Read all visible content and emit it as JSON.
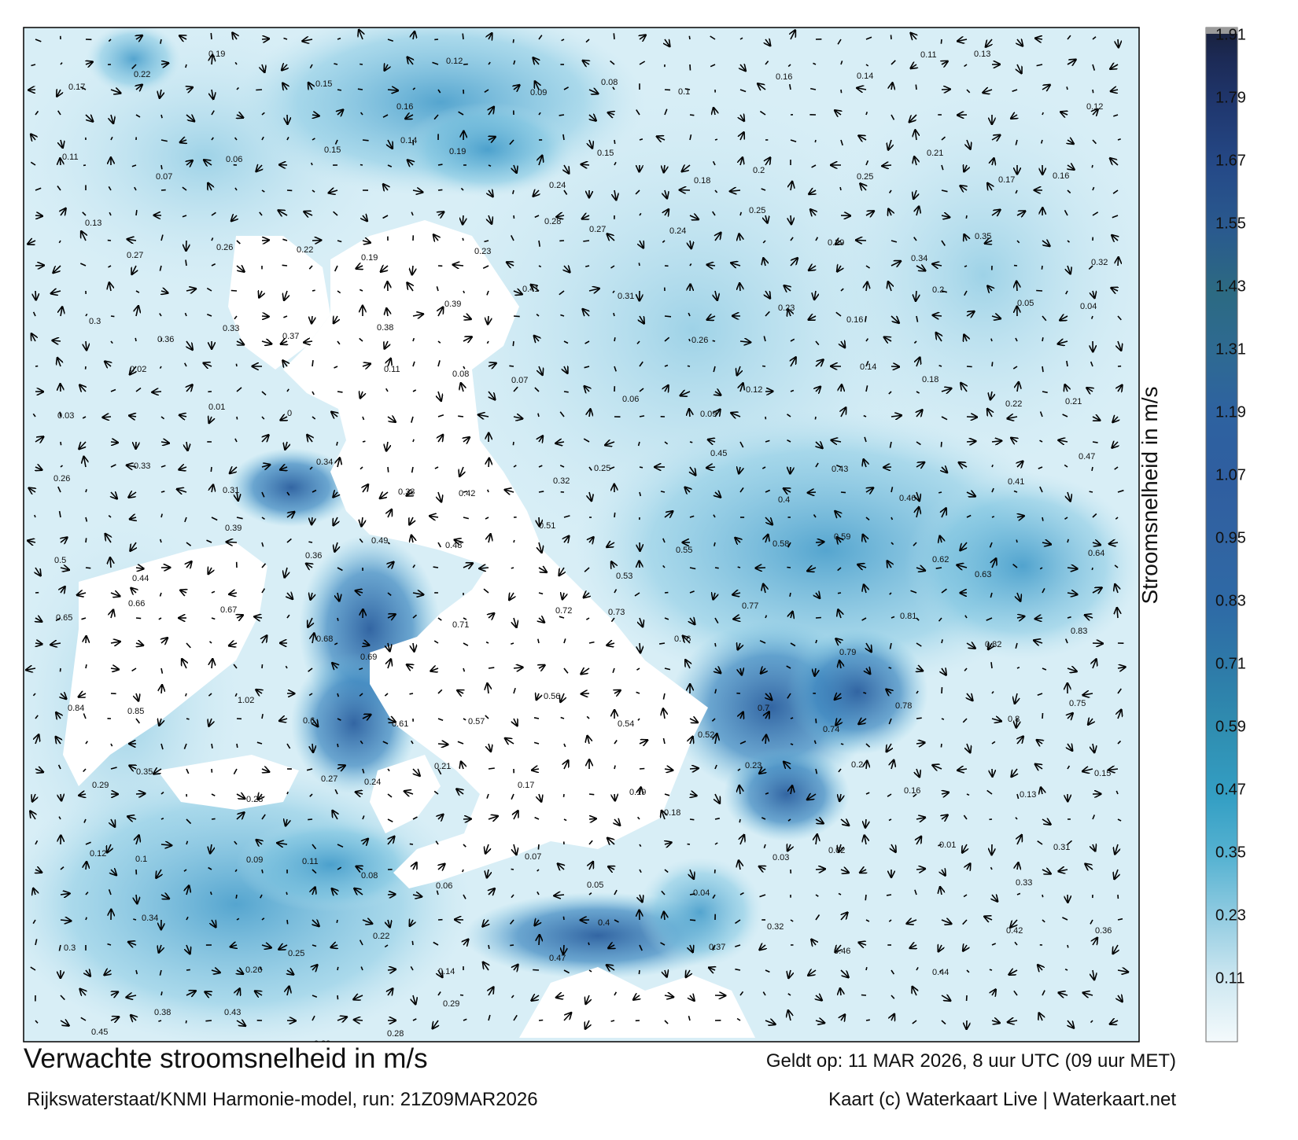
{
  "map": {
    "title": "Verwachte stroomsnelheid in m/s",
    "subtitle": "Rijkswaterstaat/KNMI Harmonie-model, run: 21Z09MAR2026",
    "validity": "Geldt op: 11 MAR 2026, 8 uur UTC (09 uur MET)",
    "credits": "Kaart (c) Waterkaart Live | Waterkaart.net",
    "variable": "stroomsnelheid",
    "unit": "m/s"
  },
  "colorbar": {
    "label": "Stroomsnelheid in m/s",
    "ticks": [
      "1.91",
      "1.79",
      "1.67",
      "1.55",
      "1.43",
      "1.31",
      "1.19",
      "1.07",
      "0.95",
      "0.83",
      "0.71",
      "0.59",
      "0.47",
      "0.35",
      "0.23",
      "0.11"
    ],
    "colors": [
      "#18203a",
      "#1c2a55",
      "#203870",
      "#254a88",
      "#2a5a8e",
      "#2c6a82",
      "#2e6a92",
      "#2e62a0",
      "#2f5ea0",
      "#3164a2",
      "#2e6aa6",
      "#2e7aa8",
      "#2f8db0",
      "#349fc4",
      "#58b3d2",
      "#95cde2",
      "#d7edf5"
    ]
  },
  "speed_labels": [
    {
      "v": "0.17"
    },
    {
      "v": "0.22"
    },
    {
      "v": "0.19"
    },
    {
      "v": "0.15"
    },
    {
      "v": "0.16"
    },
    {
      "v": "0.12"
    },
    {
      "v": "0.09"
    },
    {
      "v": "0.08"
    },
    {
      "v": "0.1"
    },
    {
      "v": "0.16"
    },
    {
      "v": "0.14"
    },
    {
      "v": "0.11"
    },
    {
      "v": "0.13"
    },
    {
      "v": "0.12"
    },
    {
      "v": "0.11"
    },
    {
      "v": "0.07"
    },
    {
      "v": "0.06"
    },
    {
      "v": "0.15"
    },
    {
      "v": "0.14"
    },
    {
      "v": "0.19"
    },
    {
      "v": "0.24"
    },
    {
      "v": "0.15"
    },
    {
      "v": "0.18"
    },
    {
      "v": "0.2"
    },
    {
      "v": "0.25"
    },
    {
      "v": "0.21"
    },
    {
      "v": "0.17"
    },
    {
      "v": "0.16"
    },
    {
      "v": "0.13"
    },
    {
      "v": "0.27"
    },
    {
      "v": "0.26"
    },
    {
      "v": "0.22"
    },
    {
      "v": "0.19"
    },
    {
      "v": "0.23"
    },
    {
      "v": "0.28"
    },
    {
      "v": "0.27"
    },
    {
      "v": "0.24"
    },
    {
      "v": "0.25"
    },
    {
      "v": "0.29"
    },
    {
      "v": "0.34"
    },
    {
      "v": "0.35"
    },
    {
      "v": "0.32"
    },
    {
      "v": "0.3"
    },
    {
      "v": "0.36"
    },
    {
      "v": "0.33"
    },
    {
      "v": "0.37"
    },
    {
      "v": "0.38"
    },
    {
      "v": "0.39"
    },
    {
      "v": "0.41"
    },
    {
      "v": "0.31"
    },
    {
      "v": "0.26"
    },
    {
      "v": "0.23"
    },
    {
      "v": "0.16"
    },
    {
      "v": "0.2"
    },
    {
      "v": "0.05"
    },
    {
      "v": "0.04"
    },
    {
      "v": "0.03"
    },
    {
      "v": "0.02"
    },
    {
      "v": "0.01"
    },
    {
      "v": "0"
    },
    {
      "v": "0.11"
    },
    {
      "v": "0.08"
    },
    {
      "v": "0.07"
    },
    {
      "v": "0.06"
    },
    {
      "v": "0.09"
    },
    {
      "v": "0.12"
    },
    {
      "v": "0.14"
    },
    {
      "v": "0.18"
    },
    {
      "v": "0.22"
    },
    {
      "v": "0.21"
    },
    {
      "v": "0.26"
    },
    {
      "v": "0.33"
    },
    {
      "v": "0.31"
    },
    {
      "v": "0.34"
    },
    {
      "v": "0.38"
    },
    {
      "v": "0.42"
    },
    {
      "v": "0.32"
    },
    {
      "v": "0.25"
    },
    {
      "v": "0.45"
    },
    {
      "v": "0.4"
    },
    {
      "v": "0.43"
    },
    {
      "v": "0.46"
    },
    {
      "v": "0.41"
    },
    {
      "v": "0.47"
    },
    {
      "v": "0.5"
    },
    {
      "v": "0.44"
    },
    {
      "v": "0.39"
    },
    {
      "v": "0.36"
    },
    {
      "v": "0.49"
    },
    {
      "v": "0.48"
    },
    {
      "v": "0.51"
    },
    {
      "v": "0.53"
    },
    {
      "v": "0.55"
    },
    {
      "v": "0.58"
    },
    {
      "v": "0.59"
    },
    {
      "v": "0.62"
    },
    {
      "v": "0.63"
    },
    {
      "v": "0.64"
    },
    {
      "v": "0.65"
    },
    {
      "v": "0.66"
    },
    {
      "v": "0.67"
    },
    {
      "v": "0.68"
    },
    {
      "v": "0.69"
    },
    {
      "v": "0.71"
    },
    {
      "v": "0.72"
    },
    {
      "v": "0.73"
    },
    {
      "v": "0.76"
    },
    {
      "v": "0.77"
    },
    {
      "v": "0.79"
    },
    {
      "v": "0.81"
    },
    {
      "v": "0.82"
    },
    {
      "v": "0.83"
    },
    {
      "v": "0.84"
    },
    {
      "v": "0.85"
    },
    {
      "v": "1.02"
    },
    {
      "v": "0.6"
    },
    {
      "v": "0.61"
    },
    {
      "v": "0.57"
    },
    {
      "v": "0.56"
    },
    {
      "v": "0.54"
    },
    {
      "v": "0.52"
    },
    {
      "v": "0.7"
    },
    {
      "v": "0.74"
    },
    {
      "v": "0.78"
    },
    {
      "v": "0.8"
    },
    {
      "v": "0.75"
    },
    {
      "v": "0.29"
    },
    {
      "v": "0.35"
    },
    {
      "v": "0.28"
    },
    {
      "v": "0.27"
    },
    {
      "v": "0.24"
    },
    {
      "v": "0.21"
    },
    {
      "v": "0.17"
    },
    {
      "v": "0.19"
    },
    {
      "v": "0.18"
    },
    {
      "v": "0.23"
    },
    {
      "v": "0.2"
    },
    {
      "v": "0.16"
    },
    {
      "v": "0.13"
    },
    {
      "v": "0.15"
    },
    {
      "v": "0.12"
    },
    {
      "v": "0.1"
    },
    {
      "v": "0.09"
    },
    {
      "v": "0.11"
    },
    {
      "v": "0.08"
    },
    {
      "v": "0.06"
    },
    {
      "v": "0.07"
    },
    {
      "v": "0.05"
    },
    {
      "v": "0.04"
    },
    {
      "v": "0.03"
    },
    {
      "v": "0.02"
    },
    {
      "v": "0.01"
    },
    {
      "v": "0.33"
    },
    {
      "v": "0.31"
    },
    {
      "v": "0.3"
    },
    {
      "v": "0.34"
    },
    {
      "v": "0.26"
    },
    {
      "v": "0.25"
    },
    {
      "v": "0.22"
    },
    {
      "v": "0.14"
    },
    {
      "v": "0.47"
    },
    {
      "v": "0.4"
    },
    {
      "v": "0.37"
    },
    {
      "v": "0.32"
    },
    {
      "v": "0.46"
    },
    {
      "v": "0.44"
    },
    {
      "v": "0.42"
    },
    {
      "v": "0.36"
    },
    {
      "v": "0.45"
    },
    {
      "v": "0.38"
    },
    {
      "v": "0.43"
    },
    {
      "v": "0.39"
    },
    {
      "v": "0.28"
    },
    {
      "v": "0.29"
    }
  ]
}
